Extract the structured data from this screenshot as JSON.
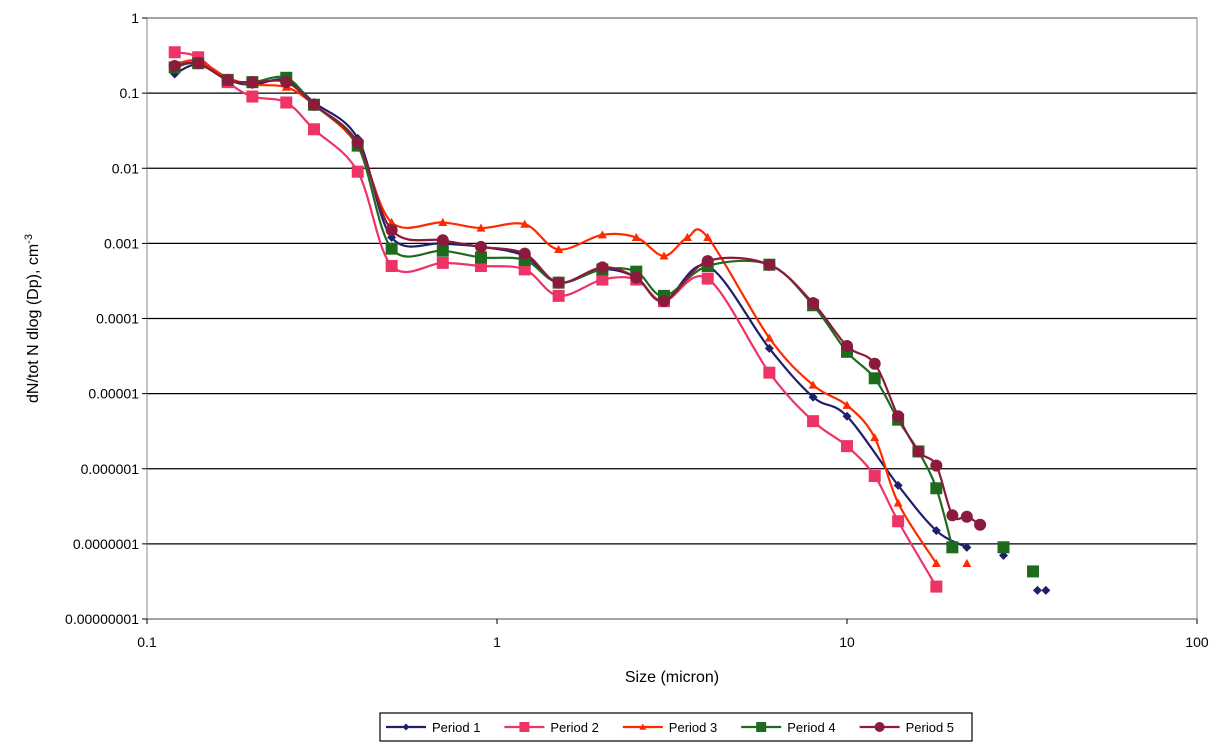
{
  "chart_data": {
    "type": "line",
    "title": "",
    "xlabel": "Size (micron)",
    "ylabel_main": "dN/tot N dlog (Dp), cm",
    "ylabel_sup": "-3",
    "x_scale": "log",
    "y_scale": "log",
    "xlim": [
      0.1,
      100
    ],
    "ylim": [
      1e-08,
      1
    ],
    "x_ticks": [
      0.1,
      1,
      10,
      100
    ],
    "x_tick_labels": [
      "0.1",
      "1",
      "10",
      "100"
    ],
    "y_ticks": [
      1,
      0.1,
      0.01,
      0.001,
      0.0001,
      1e-05,
      1e-06,
      1e-07,
      1e-08
    ],
    "y_tick_labels": [
      "1",
      "0.1",
      "0.01",
      "0.001",
      "0.0001",
      "0.00001",
      "0.000001",
      "0.0000001",
      "0.00000001"
    ],
    "grid": "horizontal major gridlines",
    "legend_position": "bottom",
    "series": [
      {
        "name": "Period 1",
        "color": "#1f1f6e",
        "marker": "diamond",
        "points": [
          [
            0.12,
            0.18
          ],
          [
            0.14,
            0.24
          ],
          [
            0.17,
            0.15
          ],
          [
            0.2,
            0.13
          ],
          [
            0.25,
            0.15
          ],
          [
            0.3,
            0.075
          ],
          [
            0.4,
            0.025
          ],
          [
            0.5,
            0.0012
          ],
          [
            0.7,
            0.001
          ],
          [
            0.9,
            0.0009
          ],
          [
            1.2,
            0.00068
          ],
          [
            1.5,
            0.0003
          ],
          [
            2.0,
            0.00045
          ],
          [
            2.5,
            0.00035
          ],
          [
            3.0,
            0.00017
          ],
          [
            4.0,
            0.0005
          ],
          [
            6.0,
            4e-05
          ],
          [
            8.0,
            9e-06
          ],
          [
            10.0,
            5e-06
          ],
          [
            14.0,
            6e-07
          ],
          [
            18.0,
            1.5e-07
          ],
          [
            22.0,
            9e-08
          ]
        ],
        "isolated_points": [
          [
            28.0,
            7e-08
          ],
          [
            35.0,
            2.4e-08
          ],
          [
            37.0,
            2.4e-08
          ]
        ]
      },
      {
        "name": "Period 2",
        "color": "#ee3366",
        "marker": "square",
        "points": [
          [
            0.12,
            0.35
          ],
          [
            0.14,
            0.3
          ],
          [
            0.17,
            0.14
          ],
          [
            0.2,
            0.09
          ],
          [
            0.25,
            0.075
          ],
          [
            0.3,
            0.033
          ],
          [
            0.4,
            0.009
          ],
          [
            0.5,
            0.0005
          ],
          [
            0.7,
            0.00055
          ],
          [
            0.9,
            0.0005
          ],
          [
            1.2,
            0.00045
          ],
          [
            1.5,
            0.0002
          ],
          [
            2.0,
            0.00033
          ],
          [
            2.5,
            0.00033
          ],
          [
            3.0,
            0.00017
          ],
          [
            4.0,
            0.00034
          ],
          [
            6.0,
            1.9e-05
          ],
          [
            8.0,
            4.3e-06
          ],
          [
            10.0,
            2e-06
          ],
          [
            12.0,
            8e-07
          ],
          [
            14.0,
            2e-07
          ],
          [
            18.0,
            2.7e-08
          ]
        ]
      },
      {
        "name": "Period 3",
        "color": "#ff2a00",
        "marker": "triangle",
        "points": [
          [
            0.12,
            0.24
          ],
          [
            0.14,
            0.27
          ],
          [
            0.17,
            0.16
          ],
          [
            0.2,
            0.13
          ],
          [
            0.25,
            0.12
          ],
          [
            0.3,
            0.07
          ],
          [
            0.4,
            0.02
          ],
          [
            0.5,
            0.0019
          ],
          [
            0.7,
            0.0019
          ],
          [
            0.9,
            0.0016
          ],
          [
            1.2,
            0.0018
          ],
          [
            1.5,
            0.00083
          ],
          [
            2.0,
            0.0013
          ],
          [
            2.5,
            0.0012
          ],
          [
            3.0,
            0.00068
          ],
          [
            3.5,
            0.0012
          ],
          [
            4.0,
            0.0012
          ],
          [
            6.0,
            5.5e-05
          ],
          [
            8.0,
            1.3e-05
          ],
          [
            10.0,
            7e-06
          ],
          [
            12.0,
            2.6e-06
          ],
          [
            14.0,
            3.5e-07
          ],
          [
            18.0,
            5.5e-08
          ]
        ],
        "isolated_points": [
          [
            22.0,
            5.5e-08
          ]
        ]
      },
      {
        "name": "Period 4",
        "color": "#1e6b1e",
        "marker": "square",
        "points": [
          [
            0.12,
            0.22
          ],
          [
            0.14,
            0.25
          ],
          [
            0.17,
            0.15
          ],
          [
            0.2,
            0.14
          ],
          [
            0.25,
            0.16
          ],
          [
            0.3,
            0.07
          ],
          [
            0.4,
            0.02
          ],
          [
            0.5,
            0.00085
          ],
          [
            0.7,
            0.0008
          ],
          [
            0.9,
            0.00065
          ],
          [
            1.2,
            0.0006
          ],
          [
            1.5,
            0.0003
          ],
          [
            2.0,
            0.00045
          ],
          [
            2.5,
            0.00042
          ],
          [
            3.0,
            0.0002
          ],
          [
            4.0,
            0.0005
          ],
          [
            6.0,
            0.00052
          ],
          [
            8.0,
            0.00015
          ],
          [
            10.0,
            3.6e-05
          ],
          [
            12.0,
            1.6e-05
          ],
          [
            14.0,
            4.5e-06
          ],
          [
            16.0,
            1.7e-06
          ],
          [
            18.0,
            5.5e-07
          ],
          [
            20.0,
            9e-08
          ]
        ],
        "isolated_points": [
          [
            28.0,
            9e-08
          ],
          [
            34.0,
            4.3e-08
          ]
        ]
      },
      {
        "name": "Period 5",
        "color": "#8b1a3c",
        "marker": "circle",
        "points": [
          [
            0.12,
            0.23
          ],
          [
            0.14,
            0.25
          ],
          [
            0.17,
            0.15
          ],
          [
            0.2,
            0.14
          ],
          [
            0.25,
            0.14
          ],
          [
            0.3,
            0.07
          ],
          [
            0.4,
            0.022
          ],
          [
            0.5,
            0.0015
          ],
          [
            0.7,
            0.0011
          ],
          [
            0.9,
            0.0009
          ],
          [
            1.2,
            0.00073
          ],
          [
            1.5,
            0.0003
          ],
          [
            2.0,
            0.00048
          ],
          [
            2.5,
            0.00035
          ],
          [
            3.0,
            0.00017
          ],
          [
            4.0,
            0.00058
          ],
          [
            6.0,
            0.00052
          ],
          [
            8.0,
            0.00016
          ],
          [
            10.0,
            4.3e-05
          ],
          [
            12.0,
            2.5e-05
          ],
          [
            14.0,
            5e-06
          ],
          [
            16.0,
            1.7e-06
          ],
          [
            18.0,
            1.1e-06
          ],
          [
            20.0,
            2.4e-07
          ],
          [
            22.0,
            2.3e-07
          ],
          [
            24.0,
            1.8e-07
          ]
        ]
      }
    ]
  }
}
